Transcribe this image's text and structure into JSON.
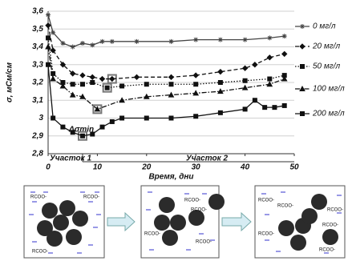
{
  "chart_data": {
    "type": "line",
    "y_label": "σ, мСм/см",
    "x_label": "Время, дни",
    "annotations": [
      "Δσmin",
      "Участок 1",
      "Участок 2"
    ],
    "xlim": [
      0,
      50
    ],
    "xticks": [
      0,
      10,
      20,
      30,
      40,
      50
    ],
    "ylim": [
      2.8,
      3.6
    ],
    "yticks": [
      {
        "value": 2.8,
        "label": "2,8"
      },
      {
        "value": 2.9,
        "label": "2,9"
      },
      3,
      {
        "value": 3.1,
        "label": "3,1"
      },
      {
        "value": 3.2,
        "label": "3,2"
      },
      {
        "value": 3.3,
        "label": "3,3"
      },
      {
        "value": 3.4,
        "label": "3,4"
      },
      {
        "value": 3.5,
        "label": "3,5"
      },
      {
        "value": 3.6,
        "label": "3,6"
      }
    ],
    "series": [
      {
        "name": "0 мг/л",
        "color": "#444444",
        "marker": "asterisk",
        "style": "solid",
        "x": [
          0,
          1,
          3,
          5,
          7,
          9,
          11,
          13,
          18,
          25,
          30,
          35,
          40,
          45,
          48
        ],
        "values": [
          3.58,
          3.48,
          3.42,
          3.4,
          3.42,
          3.41,
          3.43,
          3.43,
          3.43,
          3.43,
          3.44,
          3.44,
          3.44,
          3.45,
          3.46
        ]
      },
      {
        "name": "20 мг/л",
        "color": "#111111",
        "marker": "diamond",
        "style": "dashed",
        "x": [
          0,
          1,
          3,
          5,
          7,
          9,
          11,
          13,
          18,
          25,
          30,
          35,
          40,
          42,
          45,
          48
        ],
        "values": [
          3.52,
          3.38,
          3.3,
          3.25,
          3.24,
          3.23,
          3.22,
          3.22,
          3.23,
          3.23,
          3.24,
          3.26,
          3.28,
          3.3,
          3.34,
          3.36
        ]
      },
      {
        "name": "50 мг/л",
        "color": "#111111",
        "marker": "square",
        "style": "dotted",
        "x": [
          0,
          1,
          3,
          5,
          7,
          9,
          12,
          15,
          20,
          25,
          30,
          35,
          40,
          45,
          48
        ],
        "values": [
          3.45,
          3.25,
          3.2,
          3.19,
          3.19,
          3.2,
          3.17,
          3.18,
          3.19,
          3.19,
          3.19,
          3.2,
          3.21,
          3.22,
          3.24
        ]
      },
      {
        "name": "100 мг/л",
        "color": "#111111",
        "marker": "triangle",
        "style": "dashdot",
        "x": [
          0,
          1,
          3,
          5,
          7,
          10,
          15,
          20,
          25,
          30,
          35,
          40,
          45,
          48
        ],
        "values": [
          3.4,
          3.22,
          3.18,
          3.13,
          3.12,
          3.05,
          3.1,
          3.12,
          3.13,
          3.14,
          3.15,
          3.17,
          3.19,
          3.22
        ]
      },
      {
        "name": "200 мг/л",
        "color": "#111111",
        "marker": "square",
        "style": "solid",
        "x": [
          0,
          1,
          3,
          5,
          7,
          9,
          11,
          13,
          15,
          20,
          25,
          30,
          35,
          40,
          42,
          44,
          46,
          48
        ],
        "values": [
          3.3,
          3.0,
          2.95,
          2.92,
          2.9,
          2.91,
          2.95,
          2.98,
          3.0,
          3.0,
          3.0,
          3.01,
          3.03,
          3.05,
          3.1,
          3.06,
          3.06,
          3.07
        ]
      }
    ]
  },
  "diagram": {
    "panels": [
      {
        "labels": [
          "RCOO-",
          "RCOO-",
          "RCOO-"
        ]
      },
      {
        "labels": [
          "RCOO-",
          "RCOO-",
          "RCOO-",
          "RCOO-"
        ]
      },
      {
        "labels": [
          "RCOO-",
          "RCOO-",
          "RCOO-",
          "RCOO-",
          "RCOO-",
          "RCOO-"
        ]
      }
    ]
  }
}
